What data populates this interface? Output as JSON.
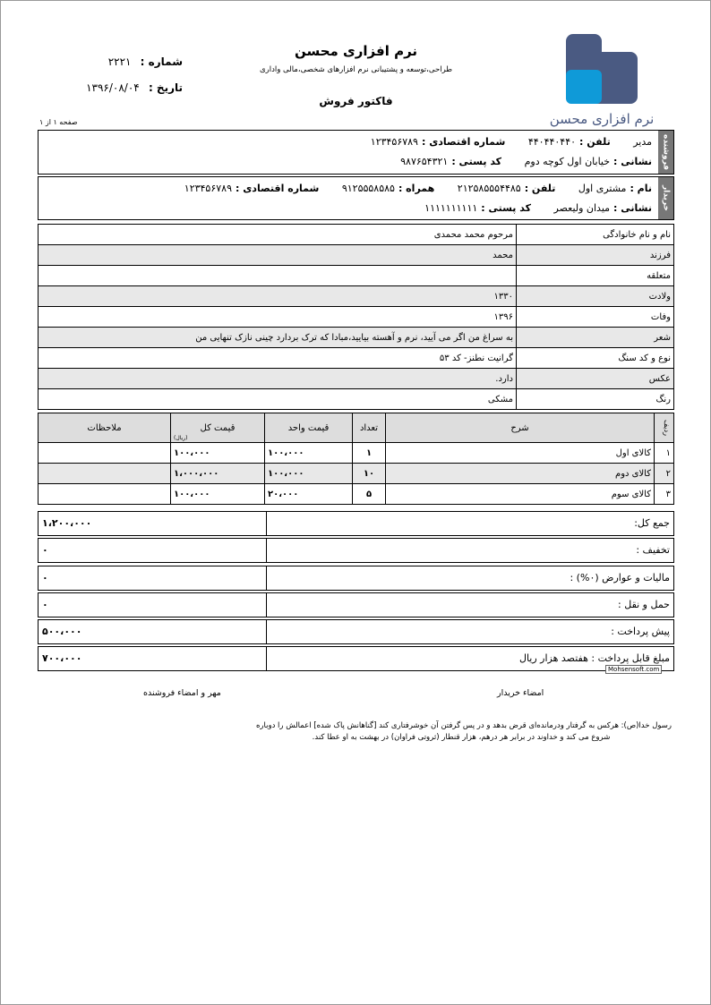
{
  "header": {
    "company": "نرم افزاری محسن",
    "tagline": "طراحی،توسعه و پشتیبانی نرم افزارهای شخصی،مالی واداری",
    "doc_title": "فاکتور فروش",
    "logo_text": "نرم افزاری محسن",
    "number_label": "شماره :",
    "number": "۲۲۲۱",
    "date_label": "تاریخ :",
    "date": "۱۳۹۶/۰۸/۰۴",
    "page": "صفحه ۱ از ۱"
  },
  "seller": {
    "side": "فروشنده",
    "name": "مدیر",
    "phone_label": "تلفن :",
    "phone": "۴۴۰۴۴۰۴۴۰",
    "econ_label": "شماره اقتصادی :",
    "econ": "۱۲۳۴۵۶۷۸۹",
    "address_label": "نشانی :",
    "address": "خیابان اول کوچه دوم",
    "postal_label": "کد پستی :",
    "postal": "۹۸۷۶۵۴۳۲۱"
  },
  "buyer": {
    "side": "خریدار",
    "name_label": "نام :",
    "name": "مشتری اول",
    "phone_label": "تلفن :",
    "phone": "۲۱۲۵۸۵۵۵۴۴۸۵",
    "mobile_label": "همراه :",
    "mobile": "۹۱۲۵۵۵۸۵۸۵",
    "econ_label": "شماره اقتصادی :",
    "econ": "۱۲۳۴۵۶۷۸۹",
    "address_label": "نشانی :",
    "address": "میدان ولیعصر",
    "postal_label": "کد پستی :",
    "postal": "۱۱۱۱۱۱۱۱۱۱"
  },
  "details": [
    {
      "label": "نام و نام خانوادگی",
      "value": "مرحوم محمد محمدی"
    },
    {
      "label": "فرزند",
      "value": "محمد"
    },
    {
      "label": "متعلقه",
      "value": ""
    },
    {
      "label": "ولادت",
      "value": "۱۳۳۰"
    },
    {
      "label": "وفات",
      "value": "۱۳۹۶"
    },
    {
      "label": "شعر",
      "value": "به سراغ من اگر می آیید، نرم و آهسته بیایید،مبادا که ترک بردارد چینی نازک تنهایی من"
    },
    {
      "label": "نوع و کد سنگ",
      "value": "گرانیت نطنز- کد ۵۳"
    },
    {
      "label": "عکس",
      "value": "دارد."
    },
    {
      "label": "رنگ",
      "value": "مشکی"
    }
  ],
  "items": {
    "headers": {
      "row": "ردیف",
      "desc": "شرح",
      "qty": "تعداد",
      "unit": "قیمت واحد",
      "total": "قیمت کل",
      "total_unit": "(ریال)",
      "notes": "ملاحظات"
    },
    "rows": [
      {
        "row": "۱",
        "desc": "کالای اول",
        "qty": "۱",
        "unit": "۱۰۰،۰۰۰",
        "total": "۱۰۰،۰۰۰",
        "notes": ""
      },
      {
        "row": "۲",
        "desc": "کالای دوم",
        "qty": "۱۰",
        "unit": "۱۰۰،۰۰۰",
        "total": "۱،۰۰۰،۰۰۰",
        "notes": ""
      },
      {
        "row": "۳",
        "desc": "کالای سوم",
        "qty": "۵",
        "unit": "۲۰،۰۰۰",
        "total": "۱۰۰،۰۰۰",
        "notes": ""
      }
    ]
  },
  "summary": [
    {
      "label": "جمع کل:",
      "value": "۱،۲۰۰،۰۰۰"
    },
    {
      "label": "تخفیف :",
      "value": "۰"
    },
    {
      "label": "مالیات و عوارض (۰%) :",
      "value": "۰"
    },
    {
      "label": "حمل و نقل :",
      "value": "۰"
    },
    {
      "label": "پیش پرداخت :",
      "value": "۵۰۰،۰۰۰"
    },
    {
      "label": "مبلغ قابل پرداخت : هفتصد هزار ریال",
      "value": "۷۰۰،۰۰۰"
    }
  ],
  "watermark": "Mohsensoft.com",
  "signatures": {
    "buyer": "امضاء خریدار",
    "seller": "مهر و امضاء فروشنده"
  },
  "footer": "رسول خدا(ص): هرکس به گرفتار ودرمانده‌ای قرض بدهد و در پس گرفتن آن خوشرفتاری کند [گناهانش پاک شده] اعمالش را دوباره شروع می کند و خداوند در برابر هر درهم، هزار قنطار (ثروتی فراوان) در بهشت به او عطا کند.",
  "colors": {
    "logo_dark": "#4a5a82",
    "logo_light": "#0f9ad8",
    "side_label": "#777777",
    "row_alt": "#e8e8e8"
  }
}
